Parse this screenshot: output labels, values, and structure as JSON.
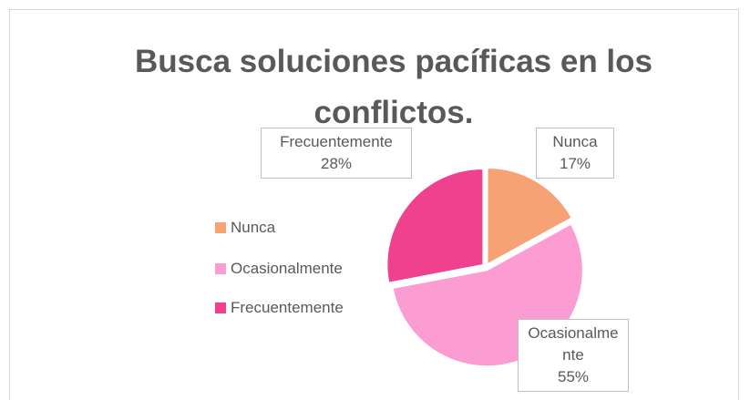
{
  "chart_data": {
    "type": "pie",
    "title": "Busca soluciones pacíficas en los conflictos.",
    "categories": [
      "Nunca",
      "Ocasionalmente",
      "Frecuentemente"
    ],
    "values": [
      17,
      55,
      28
    ],
    "value_labels": [
      "17%",
      "55%",
      "28%"
    ],
    "colors": [
      "#f6a275",
      "#fb9dd3",
      "#f0418f"
    ],
    "legend": "left"
  }
}
